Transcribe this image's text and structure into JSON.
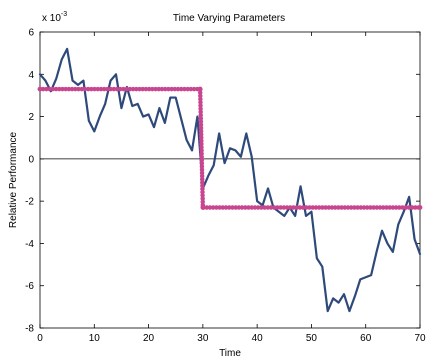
{
  "chart_data": {
    "type": "line",
    "title": "Time Varying Parameters",
    "xlabel": "Time",
    "ylabel": "Relative Performance",
    "y_exponent_label": "x 10",
    "y_exponent_power": "-3",
    "xlim": [
      0,
      70
    ],
    "ylim": [
      -8,
      6
    ],
    "xticks": [
      0,
      10,
      20,
      30,
      40,
      50,
      60,
      70
    ],
    "yticks": [
      -8,
      -6,
      -4,
      -2,
      0,
      2,
      4,
      6
    ],
    "grid": false,
    "zero_line": true,
    "series": [
      {
        "color": "#2e4a7a",
        "style": "line",
        "x": [
          0,
          1,
          2,
          3,
          4,
          5,
          6,
          7,
          8,
          9,
          10,
          11,
          12,
          13,
          14,
          15,
          16,
          17,
          18,
          19,
          20,
          21,
          22,
          23,
          24,
          25,
          26,
          27,
          28,
          29,
          30,
          31,
          32,
          33,
          34,
          35,
          36,
          37,
          38,
          39,
          40,
          41,
          42,
          43,
          44,
          45,
          46,
          47,
          48,
          49,
          50,
          51,
          52,
          53,
          54,
          55,
          56,
          57,
          58,
          59,
          60,
          61,
          62,
          63,
          64,
          65,
          66,
          67,
          68,
          69,
          70
        ],
        "values": [
          4.0,
          3.7,
          3.2,
          3.8,
          4.7,
          5.2,
          3.7,
          3.5,
          3.7,
          1.8,
          1.3,
          2.0,
          2.6,
          3.7,
          4.0,
          2.4,
          3.4,
          2.5,
          2.6,
          2.0,
          2.1,
          1.5,
          2.4,
          1.7,
          2.9,
          2.9,
          1.9,
          0.9,
          0.4,
          2.0,
          -1.4,
          -0.8,
          -0.3,
          1.2,
          -0.2,
          0.5,
          0.4,
          0.1,
          1.2,
          0.1,
          -2.0,
          -2.2,
          -1.4,
          -2.3,
          -2.5,
          -2.7,
          -2.3,
          -2.7,
          -1.3,
          -2.7,
          -2.5,
          -4.7,
          -5.1,
          -7.2,
          -6.6,
          -6.8,
          -6.4,
          -7.2,
          -6.5,
          -5.7,
          -5.6,
          -5.5,
          -4.4,
          -3.4,
          -4.0,
          -4.4,
          -3.1,
          -2.5,
          -1.8,
          -3.8,
          -4.5
        ]
      },
      {
        "color": "#c8458f",
        "style": "markers-line",
        "x": [
          0,
          29.5,
          30,
          70
        ],
        "values": [
          3.3,
          3.3,
          -2.3,
          -2.3
        ]
      }
    ]
  }
}
